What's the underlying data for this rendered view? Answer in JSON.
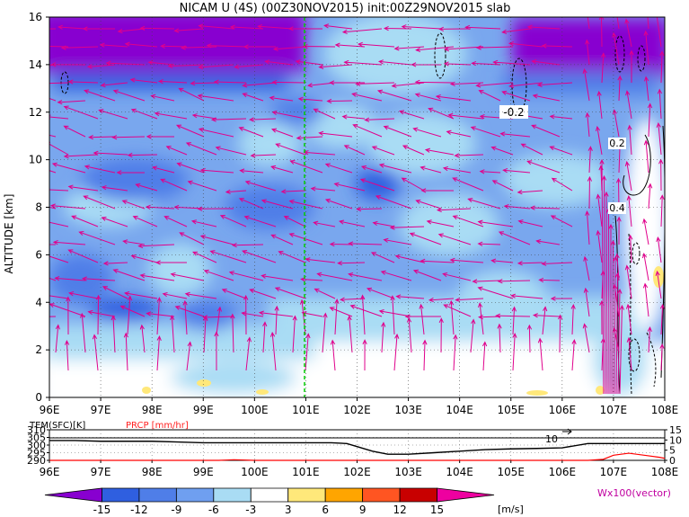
{
  "title": "NICAM U (4S) (00Z30NOV2015) init:00Z29NOV2015 slab",
  "chart_data": [
    {
      "type": "heatmap",
      "title": "NICAM U (4S) (00Z30NOV2015) init:00Z29NOV2015 slab",
      "xlabel": "",
      "ylabel": "ALTITUDE [km]",
      "x_ticks": [
        "96E",
        "97E",
        "98E",
        "99E",
        "100E",
        "101E",
        "102E",
        "103E",
        "104E",
        "105E",
        "106E",
        "107E",
        "108E"
      ],
      "xlim": [
        96,
        108
      ],
      "y_ticks": [
        "0",
        "2",
        "4",
        "6",
        "8",
        "10",
        "12",
        "14",
        "16"
      ],
      "ylim": [
        0,
        16
      ],
      "marker_line_lon": 101,
      "contour_labels": [
        "-0.2",
        "0.2",
        "0.4"
      ],
      "grid": true
    },
    {
      "type": "line",
      "series": [
        {
          "name": "TEM(SFC)[K]",
          "color": "#000000",
          "x": [
            96,
            96.5,
            97,
            97.5,
            98,
            98.5,
            99,
            99.5,
            100,
            100.5,
            101,
            101.5,
            101.8,
            102,
            102.3,
            102.6,
            103,
            103.5,
            104,
            104.5,
            105,
            105.5,
            106,
            106.5,
            107,
            107.5,
            108
          ],
          "y": [
            303,
            303,
            302.5,
            302.5,
            302.5,
            302,
            301.5,
            301.5,
            301.5,
            301.5,
            301.5,
            301.5,
            301,
            299,
            296,
            294,
            294,
            295,
            296,
            297,
            297.5,
            297.8,
            298.2,
            301,
            301,
            301,
            301
          ]
        },
        {
          "name": "PRCP [mm/hr]",
          "color": "#ff0000",
          "x": [
            96,
            99.3,
            99.6,
            100,
            100.5,
            101,
            106.5,
            106.8,
            107,
            107.3,
            107.6,
            107.9,
            108
          ],
          "y": [
            0,
            0,
            0.3,
            0,
            0,
            0,
            0,
            0.5,
            2.5,
            3.5,
            2.5,
            1.5,
            1
          ]
        }
      ],
      "y_left_ticks": [
        "290",
        "295",
        "300",
        "305",
        "310"
      ],
      "y_left_lim": [
        290,
        310
      ],
      "y_right_ticks": [
        "0",
        "5",
        "10",
        "15"
      ],
      "y_right_lim": [
        0,
        15
      ],
      "x_ticks": [
        "96E",
        "97E",
        "98E",
        "99E",
        "100E",
        "101E",
        "102E",
        "103E",
        "104E",
        "105E",
        "106E",
        "107E",
        "108E"
      ],
      "xlim": [
        96,
        108
      ],
      "annotation": "10",
      "left_label": "TEM(SFC)[K]",
      "right_label": "PRCP [mm/hr]"
    }
  ],
  "colorbar": {
    "labels": [
      "-15",
      "-12",
      "-9",
      "-6",
      "-3",
      "3",
      "6",
      "9",
      "12",
      "15"
    ],
    "colors": [
      "#8800d0",
      "#2f5fe0",
      "#4f7ee8",
      "#6f9ff0",
      "#a9dcf4",
      "#ffffff",
      "#ffe87a",
      "#ffa500",
      "#ff5522",
      "#c80000",
      "#ee00a0"
    ],
    "unit": "[m/s]"
  },
  "vector_label": "Wx100(vector)"
}
